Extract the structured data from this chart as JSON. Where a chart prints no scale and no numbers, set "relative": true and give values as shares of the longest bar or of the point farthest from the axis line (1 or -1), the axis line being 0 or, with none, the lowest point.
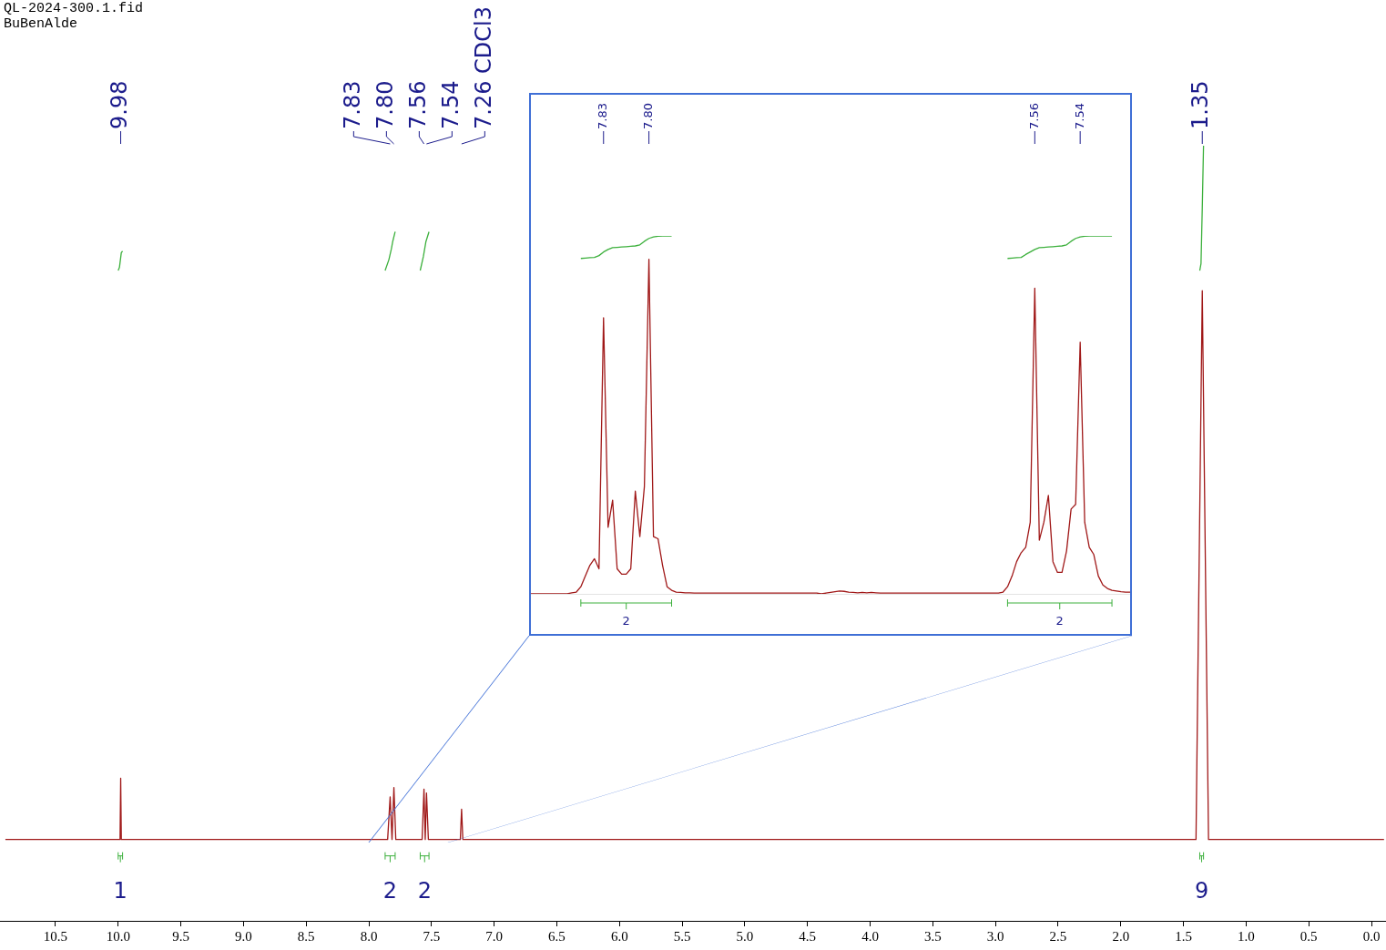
{
  "chart_data": [
    {
      "type": "line",
      "relative": true,
      "xlim": [
        10.943,
        -0.116
      ],
      "xticks": [
        {
          "value": 10.5,
          "label": "10.5"
        },
        {
          "value": 10,
          "label": "10.0"
        },
        {
          "value": 9.5,
          "label": "9.5"
        },
        {
          "value": 9,
          "label": "9.0"
        },
        {
          "value": 8.5,
          "label": "8.5"
        },
        {
          "value": 8,
          "label": "8.0"
        },
        {
          "value": 7.5,
          "label": "7.5"
        },
        {
          "value": 7,
          "label": "7.0"
        },
        {
          "value": 6.5,
          "label": "6.5"
        },
        {
          "value": 6,
          "label": "6.0"
        },
        {
          "value": 5.5,
          "label": "5.5"
        },
        {
          "value": 5,
          "label": "5.0"
        },
        {
          "value": 4.5,
          "label": "4.5"
        },
        {
          "value": 4,
          "label": "4.0"
        },
        {
          "value": 3.5,
          "label": "3.5"
        },
        {
          "value": 3,
          "label": "3.0"
        },
        {
          "value": 2.5,
          "label": "2.5"
        },
        {
          "value": 2,
          "label": "2.0"
        },
        {
          "value": 1.5,
          "label": "1.5"
        },
        {
          "value": 1,
          "label": "1.0"
        },
        {
          "value": 0.5,
          "label": "0.5"
        },
        {
          "value": 0,
          "label": "0.0"
        }
      ],
      "grid": false,
      "legend": false,
      "line_style": "solid",
      "marker": "none",
      "series": [
        {
          "color": "#a01818",
          "x": [
            10.9,
            10.0,
            9.985,
            9.98,
            9.975,
            7.85,
            7.83,
            7.815,
            7.8,
            7.785,
            7.575,
            7.56,
            7.55,
            7.54,
            7.525,
            7.27,
            7.26,
            7.25,
            1.4,
            1.35,
            1.3,
            -0.1
          ],
          "values": [
            0.105,
            0.105,
            0.105,
            0.184,
            0.105,
            0.105,
            0.16,
            0.105,
            0.172,
            0.105,
            0.105,
            0.17,
            0.105,
            0.165,
            0.105,
            0.105,
            0.144,
            0.105,
            0.105,
            0.813,
            0.105,
            0.105
          ]
        },
        {
          "color": "#3cb03c",
          "x": [
            10.0,
            9.99,
            9.975,
            9.965
          ],
          "values": [
            0.839,
            0.843,
            0.862,
            0.864
          ]
        },
        {
          "color": "#3cb03c",
          "x": [
            7.87,
            7.84,
            7.82,
            7.81,
            7.79
          ],
          "values": [
            0.839,
            0.853,
            0.867,
            0.876,
            0.889
          ]
        },
        {
          "color": "#3cb03c",
          "x": [
            7.59,
            7.565,
            7.545,
            7.52
          ],
          "values": [
            0.839,
            0.857,
            0.876,
            0.889
          ]
        },
        {
          "color": "#3cb03c",
          "x": [
            1.37,
            1.36,
            1.35,
            1.34
          ],
          "values": [
            0.839,
            0.848,
            0.92,
            1.0
          ]
        }
      ],
      "annotations": [
        "QL-2024-300.1.fid",
        "BuBenAlde",
        {
          "text": "9.98",
          "x": 9.98
        },
        {
          "text": "7.83",
          "x": 7.83
        },
        {
          "text": "7.80",
          "x": 7.8
        },
        {
          "text": "7.56",
          "x": 7.56
        },
        {
          "text": "7.54",
          "x": 7.54
        },
        {
          "text": "7.26 CDCl3",
          "x": 7.26
        },
        {
          "text": "1.35",
          "x": 1.35
        },
        "1",
        "2",
        "2",
        "9"
      ]
    },
    {
      "type": "line",
      "relative": true,
      "grid": false,
      "legend": false,
      "line_style": "solid",
      "marker": "none",
      "categories": [
        null,
        null,
        null,
        null,
        null,
        null,
        null,
        null,
        null,
        null,
        null,
        null,
        null,
        null,
        null,
        null,
        null,
        null,
        null,
        null,
        null,
        null,
        null,
        null,
        null,
        null,
        null,
        null,
        null,
        null,
        null,
        null,
        null,
        null,
        null,
        null,
        null,
        null,
        null,
        null,
        null,
        null,
        null,
        null,
        null,
        null,
        null,
        null,
        null,
        null,
        null,
        null,
        null,
        null,
        null,
        null,
        null,
        null,
        null,
        null,
        null,
        null,
        null,
        null,
        null,
        null,
        null,
        null,
        null,
        null,
        null,
        null,
        null,
        null,
        null,
        null,
        null,
        null,
        null,
        null,
        null,
        null,
        null,
        null,
        null,
        null,
        null,
        null,
        null,
        null,
        null,
        null,
        null,
        null,
        null,
        null,
        null,
        null,
        null,
        null,
        null,
        null,
        null,
        null,
        null,
        null,
        null,
        null,
        null,
        null,
        null,
        null,
        null,
        null,
        null,
        null,
        null,
        null,
        null,
        null,
        null,
        null,
        null,
        null,
        null,
        null,
        null,
        null,
        null,
        null,
        null,
        null,
        null
      ],
      "series": [
        {
          "color": "#a01818",
          "values": [
            0,
            0,
            0,
            0,
            0,
            0,
            0,
            0,
            0,
            0.003,
            0.005,
            0.02,
            0.05,
            0.08,
            0.098,
            0.07,
            0.771,
            0.186,
            0.262,
            0.07,
            0.055,
            0.055,
            0.07,
            0.287,
            0.16,
            0.3,
            0.935,
            0.16,
            0.154,
            0.08,
            0.02,
            0.01,
            0.005,
            0.004,
            0.003,
            0.003,
            0.002,
            0.002,
            0.002,
            0.002,
            0.002,
            0.002,
            0.002,
            0.002,
            0.002,
            0.002,
            0.002,
            0.002,
            0.002,
            0.002,
            0.002,
            0.002,
            0.002,
            0.002,
            0.002,
            0.002,
            0.002,
            0.002,
            0.002,
            0.002,
            0.002,
            0.002,
            0.002,
            0.002,
            0,
            0.002,
            0.004,
            0.006,
            0.008,
            0.007,
            0.005,
            0.004,
            0.003,
            0.004,
            0.003,
            0.004,
            0.003,
            0.002,
            0.002,
            0.002,
            0.002,
            0.002,
            0.002,
            0.002,
            0.002,
            0.002,
            0.002,
            0.002,
            0.002,
            0.002,
            0.002,
            0.002,
            0.002,
            0.002,
            0.002,
            0.002,
            0.002,
            0.002,
            0.002,
            0.002,
            0.002,
            0.002,
            0.002,
            0.002,
            0.005,
            0.02,
            0.05,
            0.09,
            0.115,
            0.13,
            0.2,
            0.854,
            0.15,
            0.2,
            0.275,
            0.09,
            0.06,
            0.06,
            0.12,
            0.237,
            0.25,
            0.703,
            0.2,
            0.13,
            0.11,
            0.05,
            0.025,
            0.015,
            0.01,
            0.008,
            0.006,
            0.005,
            0.005
          ]
        },
        {
          "color": "#3cb03c",
          "values": [
            null,
            null,
            null,
            null,
            null,
            null,
            null,
            null,
            null,
            null,
            null,
            0.937,
            0.938,
            0.939,
            0.94,
            0.945,
            0.955,
            0.962,
            0.967,
            0.968,
            0.969,
            0.97,
            0.971,
            0.972,
            0.975,
            0.985,
            0.993,
            0.997,
            0.999,
            1.0,
            1.0,
            1.0,
            null,
            null,
            null,
            null,
            null,
            null,
            null,
            null,
            null,
            null,
            null,
            null,
            null,
            null,
            null,
            null,
            null,
            null,
            null,
            null,
            null,
            null,
            null,
            null,
            null,
            null,
            null,
            null,
            null,
            null,
            null,
            null,
            null,
            null,
            null,
            null,
            null,
            null,
            null,
            null,
            null,
            null,
            null,
            null,
            null,
            null,
            null,
            null,
            null,
            null,
            null,
            null,
            null,
            null,
            null,
            null,
            null,
            null,
            null,
            null,
            null,
            null,
            null,
            null,
            null,
            null,
            null,
            null,
            null,
            null,
            null,
            null,
            null,
            null,
            null,
            null,
            null,
            null,
            null,
            null,
            null,
            null,
            null,
            null,
            null,
            null,
            null,
            null,
            null,
            null,
            null,
            null,
            null,
            null,
            null,
            null,
            null,
            null,
            null,
            null,
            null
          ]
        },
        {
          "color": "#3cb03c",
          "values": [
            null,
            null,
            null,
            null,
            null,
            null,
            null,
            null,
            null,
            null,
            null,
            null,
            null,
            null,
            null,
            null,
            null,
            null,
            null,
            null,
            null,
            null,
            null,
            null,
            null,
            null,
            null,
            null,
            null,
            null,
            null,
            null,
            null,
            null,
            null,
            null,
            null,
            null,
            null,
            null,
            null,
            null,
            null,
            null,
            null,
            null,
            null,
            null,
            null,
            null,
            null,
            null,
            null,
            null,
            null,
            null,
            null,
            null,
            null,
            null,
            null,
            null,
            null,
            null,
            null,
            null,
            null,
            null,
            null,
            null,
            null,
            null,
            null,
            null,
            null,
            null,
            null,
            null,
            null,
            null,
            null,
            null,
            null,
            null,
            null,
            null,
            null,
            null,
            null,
            null,
            null,
            null,
            null,
            null,
            null,
            null,
            null,
            null,
            null,
            null,
            null,
            null,
            null,
            null,
            null,
            0.937,
            0.938,
            0.939,
            0.94,
            0.948,
            0.955,
            0.962,
            0.967,
            0.968,
            0.969,
            0.97,
            0.971,
            0.972,
            0.975,
            0.985,
            0.993,
            0.997,
            0.999,
            1,
            1,
            1,
            1,
            1,
            1,
            null,
            null,
            null,
            null
          ]
        }
      ],
      "annotations": [
        "7.83",
        "7.80",
        "7.56",
        "7.54",
        "2",
        "2"
      ]
    }
  ]
}
